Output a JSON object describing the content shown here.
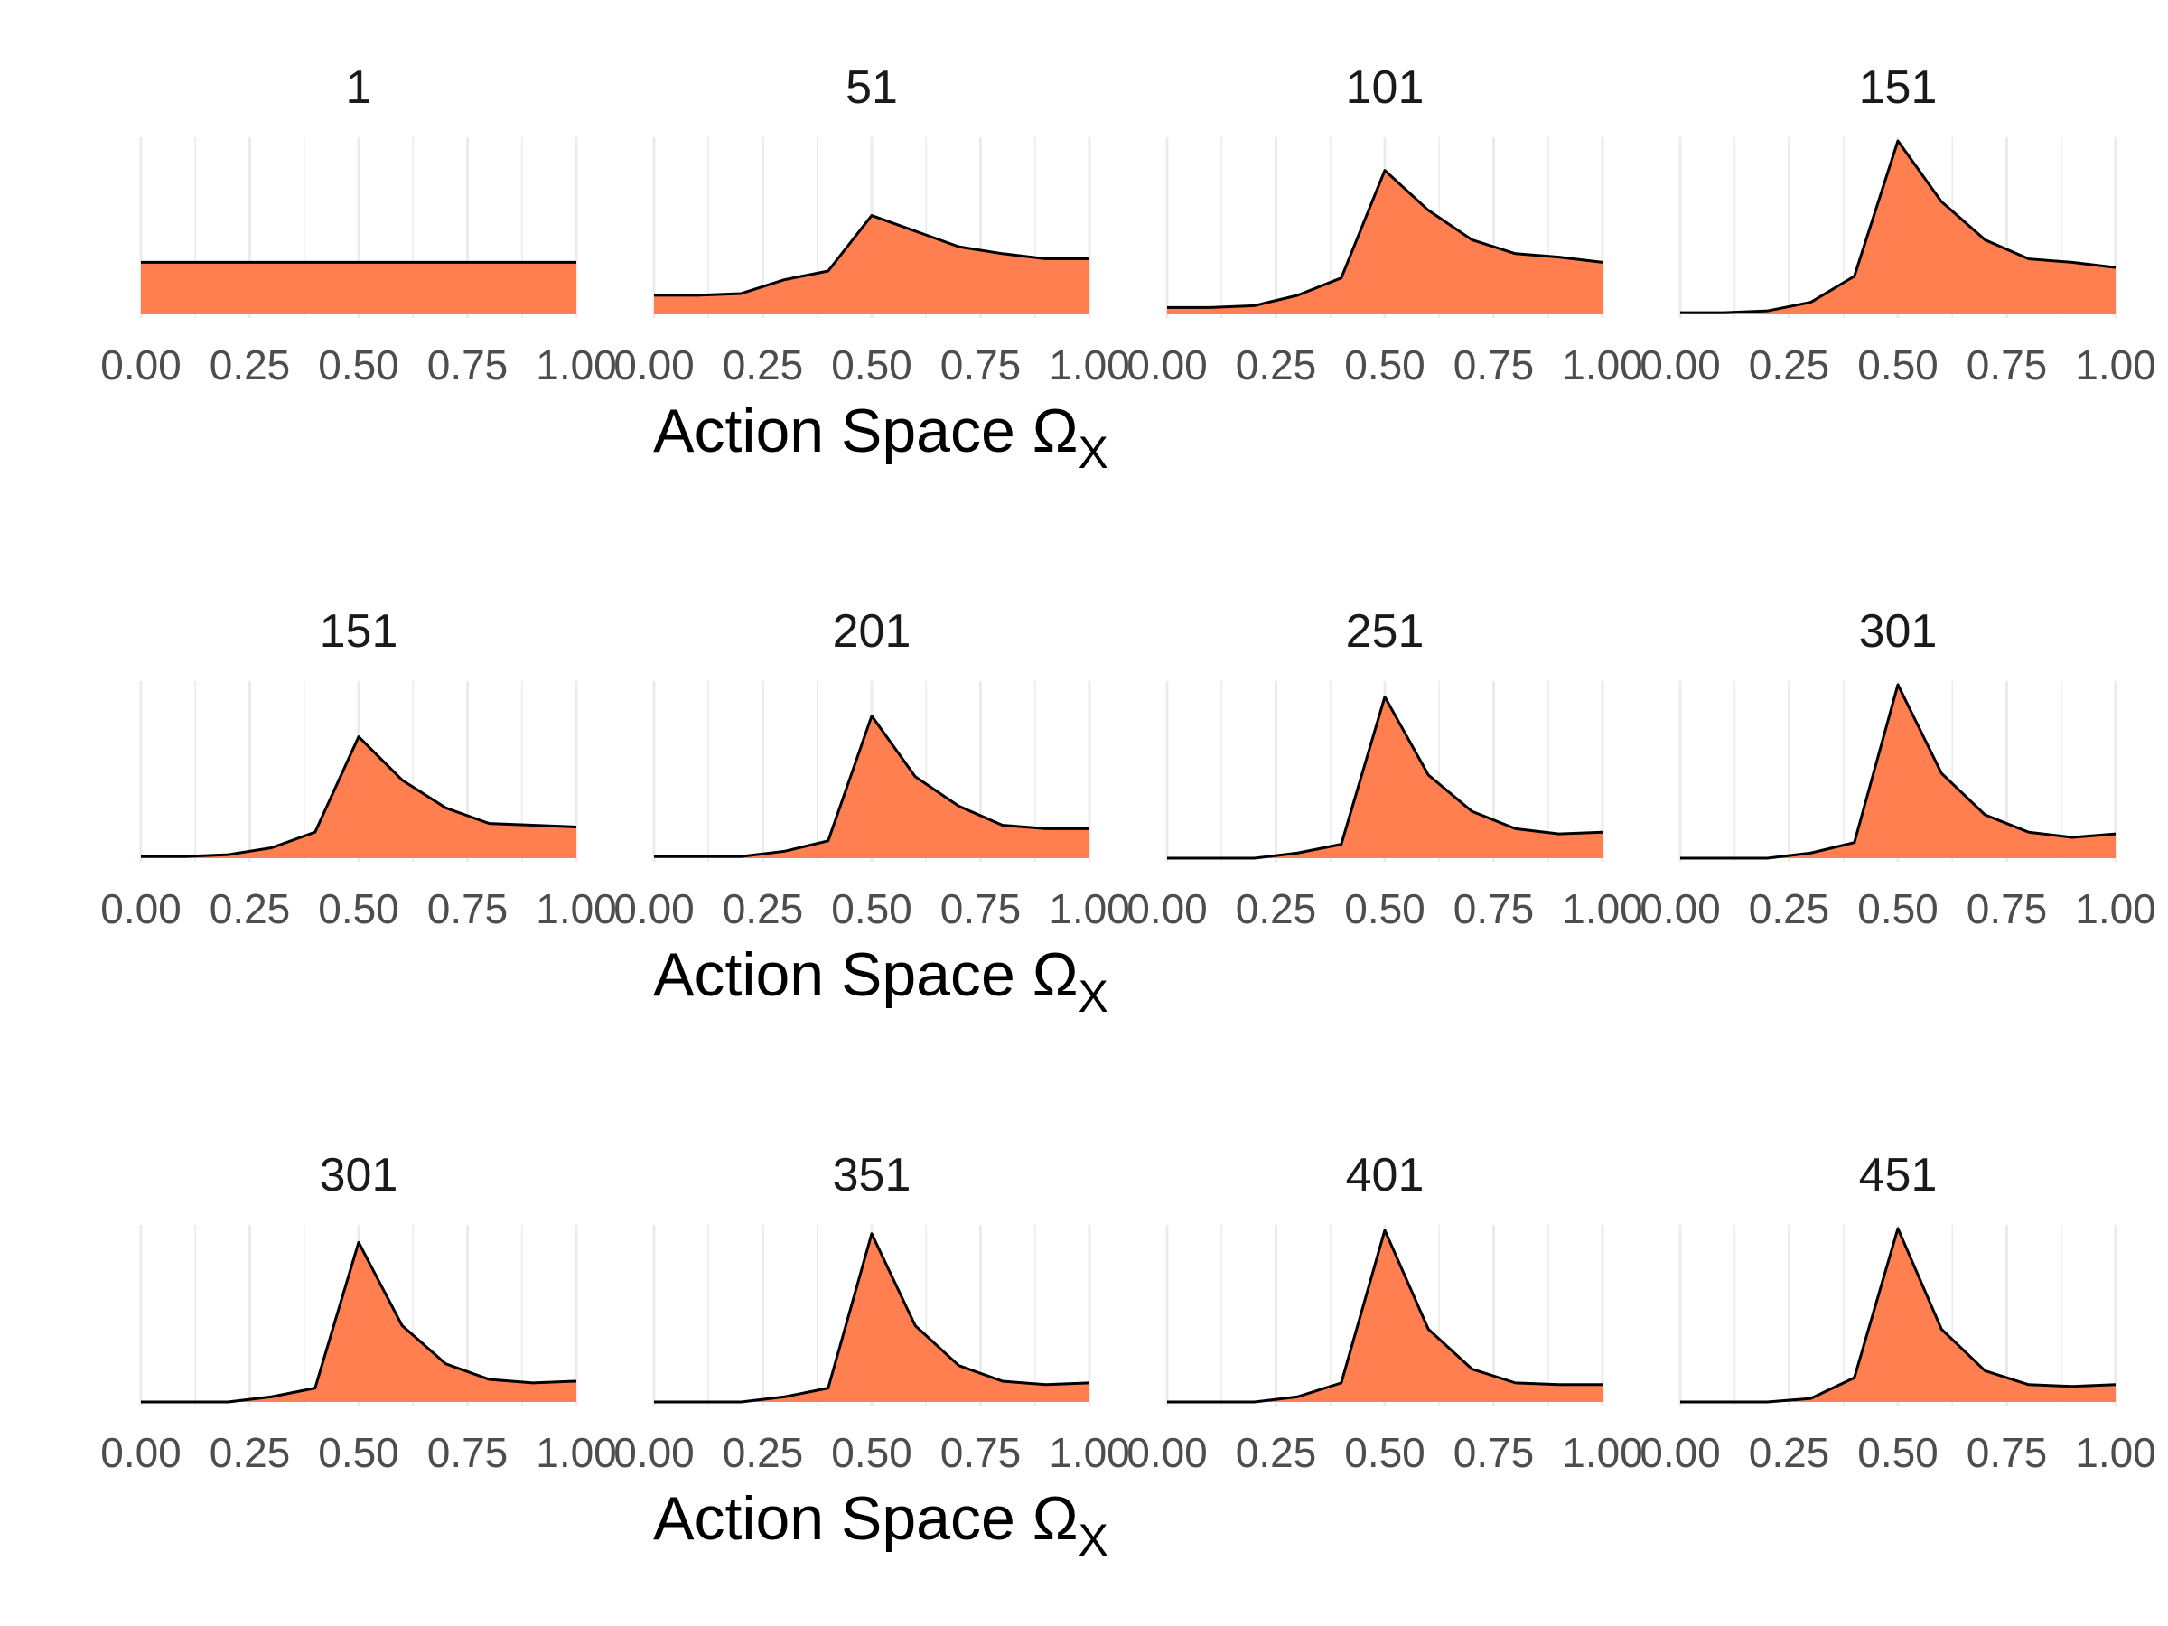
{
  "chart_data": [
    {
      "type": "area",
      "xlabel": "Action Space",
      "xlabel_symbol": "Ω",
      "xlabel_subscript": "X",
      "x": [
        0.0,
        0.1,
        0.2,
        0.3,
        0.4,
        0.5,
        0.6,
        0.7,
        0.8,
        0.9,
        1.0
      ],
      "xticks": [
        "0.00",
        "0.25",
        "0.50",
        "0.75",
        "1.00"
      ],
      "xlim": [
        0,
        1
      ],
      "ylim": [
        0,
        1
      ],
      "grid": true,
      "colors": {
        "fill": "#FF7F50",
        "line": "#000000",
        "grid": "#EBEBEB"
      },
      "panels": [
        {
          "label": "1",
          "values": [
            0.3,
            0.3,
            0.3,
            0.3,
            0.3,
            0.3,
            0.3,
            0.3,
            0.3,
            0.3,
            0.3
          ]
        },
        {
          "label": "51",
          "values": [
            0.11,
            0.11,
            0.12,
            0.2,
            0.25,
            0.57,
            0.48,
            0.39,
            0.35,
            0.32,
            0.32
          ]
        },
        {
          "label": "101",
          "values": [
            0.04,
            0.04,
            0.05,
            0.11,
            0.21,
            0.83,
            0.6,
            0.43,
            0.35,
            0.33,
            0.3
          ]
        },
        {
          "label": "151",
          "values": [
            0.01,
            0.01,
            0.02,
            0.07,
            0.22,
            1.0,
            0.65,
            0.43,
            0.32,
            0.3,
            0.27
          ]
        }
      ]
    },
    {
      "type": "area",
      "xlabel": "Action Space",
      "xlabel_symbol": "Ω",
      "xlabel_subscript": "X",
      "x": [
        0.0,
        0.1,
        0.2,
        0.3,
        0.4,
        0.5,
        0.6,
        0.7,
        0.8,
        0.9,
        1.0
      ],
      "xticks": [
        "0.00",
        "0.25",
        "0.50",
        "0.75",
        "1.00"
      ],
      "xlim": [
        0,
        1
      ],
      "ylim": [
        0,
        1
      ],
      "grid": true,
      "colors": {
        "fill": "#FF7F50",
        "line": "#000000",
        "grid": "#EBEBEB"
      },
      "panels": [
        {
          "label": "151",
          "values": [
            0.01,
            0.01,
            0.02,
            0.06,
            0.15,
            0.7,
            0.45,
            0.29,
            0.2,
            0.19,
            0.18
          ]
        },
        {
          "label": "201",
          "values": [
            0.01,
            0.01,
            0.01,
            0.04,
            0.1,
            0.82,
            0.47,
            0.3,
            0.19,
            0.17,
            0.17
          ]
        },
        {
          "label": "251",
          "values": [
            0.0,
            0.0,
            0.0,
            0.03,
            0.08,
            0.93,
            0.48,
            0.27,
            0.17,
            0.14,
            0.15
          ]
        },
        {
          "label": "301",
          "values": [
            0.0,
            0.0,
            0.0,
            0.03,
            0.09,
            1.0,
            0.49,
            0.25,
            0.15,
            0.12,
            0.14
          ]
        }
      ]
    },
    {
      "type": "area",
      "xlabel": "Action Space",
      "xlabel_symbol": "Ω",
      "xlabel_subscript": "X",
      "x": [
        0.0,
        0.1,
        0.2,
        0.3,
        0.4,
        0.5,
        0.6,
        0.7,
        0.8,
        0.9,
        1.0
      ],
      "xticks": [
        "0.00",
        "0.25",
        "0.50",
        "0.75",
        "1.00"
      ],
      "xlim": [
        0,
        1
      ],
      "ylim": [
        0,
        1
      ],
      "grid": true,
      "colors": {
        "fill": "#FF7F50",
        "line": "#000000",
        "grid": "#EBEBEB"
      },
      "panels": [
        {
          "label": "301",
          "values": [
            0.0,
            0.0,
            0.0,
            0.03,
            0.08,
            0.92,
            0.44,
            0.22,
            0.13,
            0.11,
            0.12
          ]
        },
        {
          "label": "351",
          "values": [
            0.0,
            0.0,
            0.0,
            0.03,
            0.08,
            0.97,
            0.44,
            0.21,
            0.12,
            0.1,
            0.11
          ]
        },
        {
          "label": "401",
          "values": [
            0.0,
            0.0,
            0.0,
            0.03,
            0.11,
            0.99,
            0.42,
            0.19,
            0.11,
            0.1,
            0.1
          ]
        },
        {
          "label": "451",
          "values": [
            0.0,
            0.0,
            0.0,
            0.02,
            0.14,
            1.0,
            0.42,
            0.18,
            0.1,
            0.09,
            0.1
          ]
        }
      ]
    }
  ]
}
